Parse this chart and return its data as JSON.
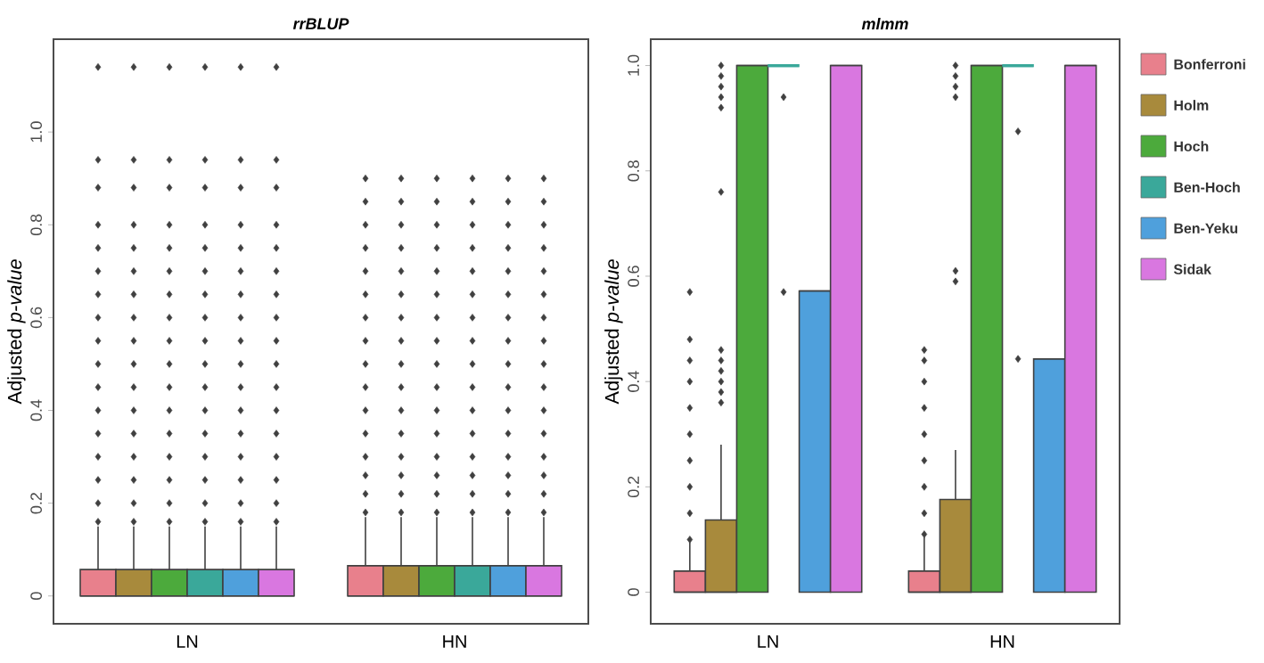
{
  "chart_data": [
    {
      "type": "box",
      "title": "rrBLUP",
      "ylabel": "Adjusted *p-value*",
      "categories": [
        "LN",
        "HN"
      ],
      "ylim": [
        -0.06,
        1.2
      ],
      "yticks": [
        0,
        0.2,
        0.4,
        0.6,
        0.8,
        {
          "value": 1,
          "label": "1.0"
        }
      ],
      "grid": false,
      "legend": false,
      "marker": "diamond",
      "series": [
        {
          "color": "#e8808c",
          "boxes": [
            {
              "low": 0,
              "q1": 0,
              "median": 0,
              "q3": 0.057,
              "high": 0.15,
              "outliers": [
                0.16,
                0.2,
                0.25,
                0.3,
                0.35,
                0.4,
                0.45,
                0.5,
                0.55,
                0.6,
                0.65,
                0.7,
                0.75,
                0.8,
                0.88,
                0.94,
                1.14
              ]
            },
            {
              "low": 0,
              "q1": 0,
              "median": 0,
              "q3": 0.065,
              "high": 0.17,
              "outliers": [
                0.18,
                0.22,
                0.26,
                0.3,
                0.35,
                0.4,
                0.45,
                0.5,
                0.55,
                0.6,
                0.65,
                0.7,
                0.75,
                0.8,
                0.85,
                0.9
              ]
            }
          ]
        },
        {
          "color": "#a88a3c",
          "boxes": [
            {
              "low": 0,
              "q1": 0,
              "median": 0,
              "q3": 0.057,
              "high": 0.15,
              "outliers": [
                0.16,
                0.2,
                0.25,
                0.3,
                0.35,
                0.4,
                0.45,
                0.5,
                0.55,
                0.6,
                0.65,
                0.7,
                0.75,
                0.8,
                0.88,
                0.94,
                1.14
              ]
            },
            {
              "low": 0,
              "q1": 0,
              "median": 0,
              "q3": 0.065,
              "high": 0.17,
              "outliers": [
                0.18,
                0.22,
                0.26,
                0.3,
                0.35,
                0.4,
                0.45,
                0.5,
                0.55,
                0.6,
                0.65,
                0.7,
                0.75,
                0.8,
                0.85,
                0.9
              ]
            }
          ]
        },
        {
          "color": "#4caa3c",
          "boxes": [
            {
              "low": 0,
              "q1": 0,
              "median": 0,
              "q3": 0.057,
              "high": 0.15,
              "outliers": [
                0.16,
                0.2,
                0.25,
                0.3,
                0.35,
                0.4,
                0.45,
                0.5,
                0.55,
                0.6,
                0.65,
                0.7,
                0.75,
                0.8,
                0.88,
                0.94,
                1.14
              ]
            },
            {
              "low": 0,
              "q1": 0,
              "median": 0,
              "q3": 0.065,
              "high": 0.17,
              "outliers": [
                0.18,
                0.22,
                0.26,
                0.3,
                0.35,
                0.4,
                0.45,
                0.5,
                0.55,
                0.6,
                0.65,
                0.7,
                0.75,
                0.8,
                0.85,
                0.9
              ]
            }
          ]
        },
        {
          "color": "#3aa89a",
          "boxes": [
            {
              "low": 0,
              "q1": 0,
              "median": 0,
              "q3": 0.057,
              "high": 0.15,
              "outliers": [
                0.16,
                0.2,
                0.25,
                0.3,
                0.35,
                0.4,
                0.45,
                0.5,
                0.55,
                0.6,
                0.65,
                0.7,
                0.75,
                0.8,
                0.88,
                0.94,
                1.14
              ]
            },
            {
              "low": 0,
              "q1": 0,
              "median": 0,
              "q3": 0.065,
              "high": 0.17,
              "outliers": [
                0.18,
                0.22,
                0.26,
                0.3,
                0.35,
                0.4,
                0.45,
                0.5,
                0.55,
                0.6,
                0.65,
                0.7,
                0.75,
                0.8,
                0.85,
                0.9
              ]
            }
          ]
        },
        {
          "color": "#4fa0dc",
          "boxes": [
            {
              "low": 0,
              "q1": 0,
              "median": 0,
              "q3": 0.057,
              "high": 0.15,
              "outliers": [
                0.16,
                0.2,
                0.25,
                0.3,
                0.35,
                0.4,
                0.45,
                0.5,
                0.55,
                0.6,
                0.65,
                0.7,
                0.75,
                0.8,
                0.88,
                0.94,
                1.14
              ]
            },
            {
              "low": 0,
              "q1": 0,
              "median": 0,
              "q3": 0.065,
              "high": 0.17,
              "outliers": [
                0.18,
                0.22,
                0.26,
                0.3,
                0.35,
                0.4,
                0.45,
                0.5,
                0.55,
                0.6,
                0.65,
                0.7,
                0.75,
                0.8,
                0.85,
                0.9
              ]
            }
          ]
        },
        {
          "color": "#d977e0",
          "boxes": [
            {
              "low": 0,
              "q1": 0,
              "median": 0,
              "q3": 0.057,
              "high": 0.15,
              "outliers": [
                0.16,
                0.2,
                0.25,
                0.3,
                0.35,
                0.4,
                0.45,
                0.5,
                0.55,
                0.6,
                0.65,
                0.7,
                0.75,
                0.8,
                0.88,
                0.94,
                1.14
              ]
            },
            {
              "low": 0,
              "q1": 0,
              "median": 0,
              "q3": 0.065,
              "high": 0.17,
              "outliers": [
                0.18,
                0.22,
                0.26,
                0.3,
                0.35,
                0.4,
                0.45,
                0.5,
                0.55,
                0.6,
                0.65,
                0.7,
                0.75,
                0.8,
                0.85,
                0.9
              ]
            }
          ]
        }
      ]
    },
    {
      "type": "box",
      "title": "mlmm",
      "ylabel": "Adjusted *p-value*",
      "categories": [
        "LN",
        "HN"
      ],
      "ylim": [
        -0.06,
        1.05
      ],
      "yticks": [
        0,
        0.2,
        0.4,
        0.6,
        0.8,
        {
          "value": 1,
          "label": "1.0"
        }
      ],
      "grid": false,
      "legend": "right",
      "marker": "diamond",
      "series": [
        {
          "name": "Bonferroni",
          "color": "#e8808c",
          "boxes": [
            {
              "low": 0,
              "q1": 0,
              "median": 0,
              "q3": 0.04,
              "high": 0.095,
              "outliers": [
                0.1,
                0.15,
                0.2,
                0.25,
                0.3,
                0.35,
                0.4,
                0.44,
                0.48,
                0.57
              ]
            },
            {
              "low": 0,
              "q1": 0,
              "median": 0,
              "q3": 0.04,
              "high": 0.105,
              "outliers": [
                0.11,
                0.15,
                0.2,
                0.25,
                0.3,
                0.35,
                0.4,
                0.44,
                0.46
              ]
            }
          ]
        },
        {
          "name": "Holm",
          "color": "#a88a3c",
          "boxes": [
            {
              "low": 0,
              "q1": 0,
              "median": 0,
              "q3": 0.137,
              "high": 0.28,
              "outliers": [
                0.36,
                0.38,
                0.4,
                0.42,
                0.44,
                0.46,
                0.76,
                0.92,
                0.94,
                0.96,
                0.98,
                1.0
              ]
            },
            {
              "low": 0,
              "q1": 0,
              "median": 0,
              "q3": 0.176,
              "high": 0.27,
              "outliers": [
                0.59,
                0.61,
                0.94,
                0.96,
                0.98,
                1.0
              ]
            }
          ]
        },
        {
          "name": "Hoch",
          "color": "#4caa3c",
          "boxes": [
            {
              "low": 0,
              "q1": 0,
              "median": 1.0,
              "q3": 1.0,
              "high": 1.0
            },
            {
              "low": 0,
              "q1": 0,
              "median": 1.0,
              "q3": 1.0,
              "high": 1.0
            }
          ]
        },
        {
          "name": "Ben-Hoch",
          "color": "#3aa89a",
          "boxes": [
            {
              "low": 1.0,
              "q1": 1.0,
              "median": 1.0,
              "q3": 1.0,
              "high": 1.0,
              "outliers": [
                0.94,
                0.57
              ]
            },
            {
              "low": 1.0,
              "q1": 1.0,
              "median": 1.0,
              "q3": 1.0,
              "high": 1.0,
              "outliers": [
                0.875,
                0.443
              ]
            }
          ]
        },
        {
          "name": "Ben-Yeku",
          "color": "#4fa0dc",
          "boxes": [
            {
              "low": 0,
              "q1": 0,
              "median": 0.572,
              "q3": 0.572,
              "high": 0.572
            },
            {
              "low": 0,
              "q1": 0,
              "median": 0.443,
              "q3": 0.443,
              "high": 0.443
            }
          ]
        },
        {
          "name": "Sidak",
          "color": "#d977e0",
          "boxes": [
            {
              "low": 0,
              "q1": 0,
              "median": 1.0,
              "q3": 1.0,
              "high": 1.0
            },
            {
              "low": 0,
              "q1": 0,
              "median": 1.0,
              "q3": 1.0,
              "high": 1.0
            }
          ]
        }
      ]
    }
  ]
}
